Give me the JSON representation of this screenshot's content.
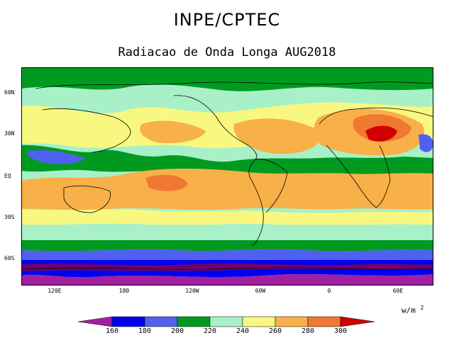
{
  "header": {
    "title": "INPE/CPTEC",
    "subtitle": "Radiacao de Onda Longa AUG2018"
  },
  "map": {
    "lat_ticks": [
      "60N",
      "30N",
      "EQ",
      "30S",
      "60S"
    ],
    "lon_ticks": [
      "120E",
      "180",
      "120W",
      "60W",
      "0",
      "60E"
    ]
  },
  "legend": {
    "units": "w/m",
    "units_exponent": "2",
    "levels": [
      "160",
      "180",
      "200",
      "220",
      "240",
      "260",
      "280",
      "300"
    ],
    "colors": [
      "#a020a0",
      "#0000ee",
      "#5060f0",
      "#009a20",
      "#a8f0c8",
      "#f8f880",
      "#f8b048",
      "#f07830",
      "#d00000"
    ]
  }
}
